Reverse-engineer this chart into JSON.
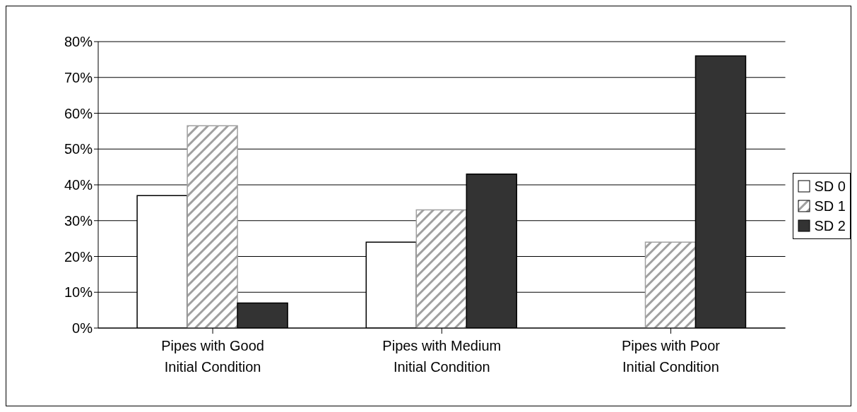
{
  "chart_data": {
    "type": "bar",
    "categories": [
      "Pipes with Good Initial Condition",
      "Pipes with Medium Initial Condition",
      "Pipes with Poor Initial Condition"
    ],
    "series": [
      {
        "name": "SD 0",
        "color": "#ffffff",
        "values": [
          37,
          24,
          0
        ]
      },
      {
        "name": "SD 1",
        "color": "#a0a0a0",
        "values": [
          56.5,
          33,
          24
        ]
      },
      {
        "name": "SD 2",
        "color": "#333333",
        "values": [
          7,
          43,
          76
        ]
      }
    ],
    "ylim": [
      0,
      80
    ],
    "yticks": [
      {
        "value": 0,
        "label": "0%"
      },
      {
        "value": 10,
        "label": "10%"
      },
      {
        "value": 20,
        "label": "20%"
      },
      {
        "value": 30,
        "label": "30%"
      },
      {
        "value": 40,
        "label": "40%"
      },
      {
        "value": 50,
        "label": "50%"
      },
      {
        "value": 60,
        "label": "60%"
      },
      {
        "value": 70,
        "label": "70%"
      },
      {
        "value": 80,
        "label": "80%"
      }
    ],
    "grid": "y",
    "legend": "right"
  }
}
